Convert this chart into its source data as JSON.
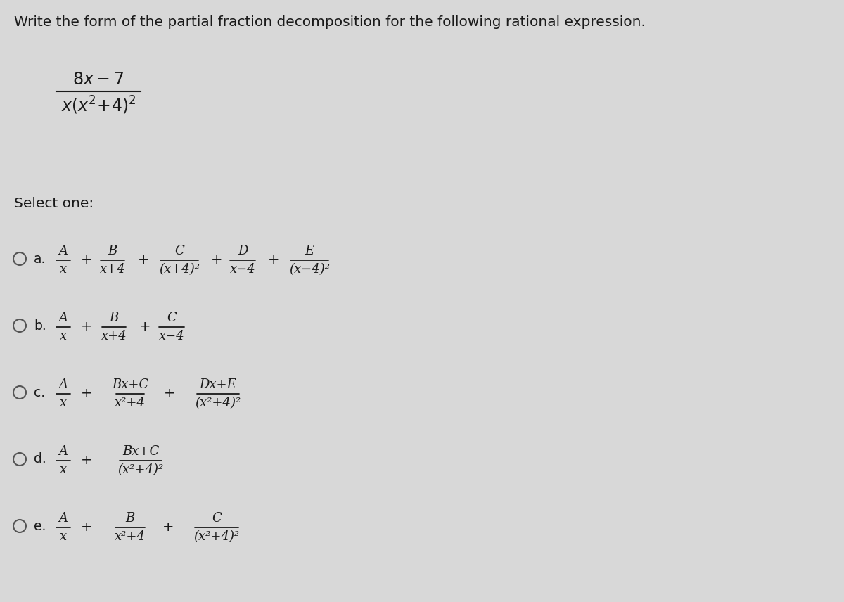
{
  "bg_color": "#d8d8d8",
  "title": "Write the form of the partial fraction decomposition for the following rational expression.",
  "title_fontsize": 14.5,
  "text_color": "#1a1a1a",
  "select_text": "Select one:",
  "options_labels": [
    "a.",
    "b.",
    "c.",
    "d.",
    "e."
  ]
}
